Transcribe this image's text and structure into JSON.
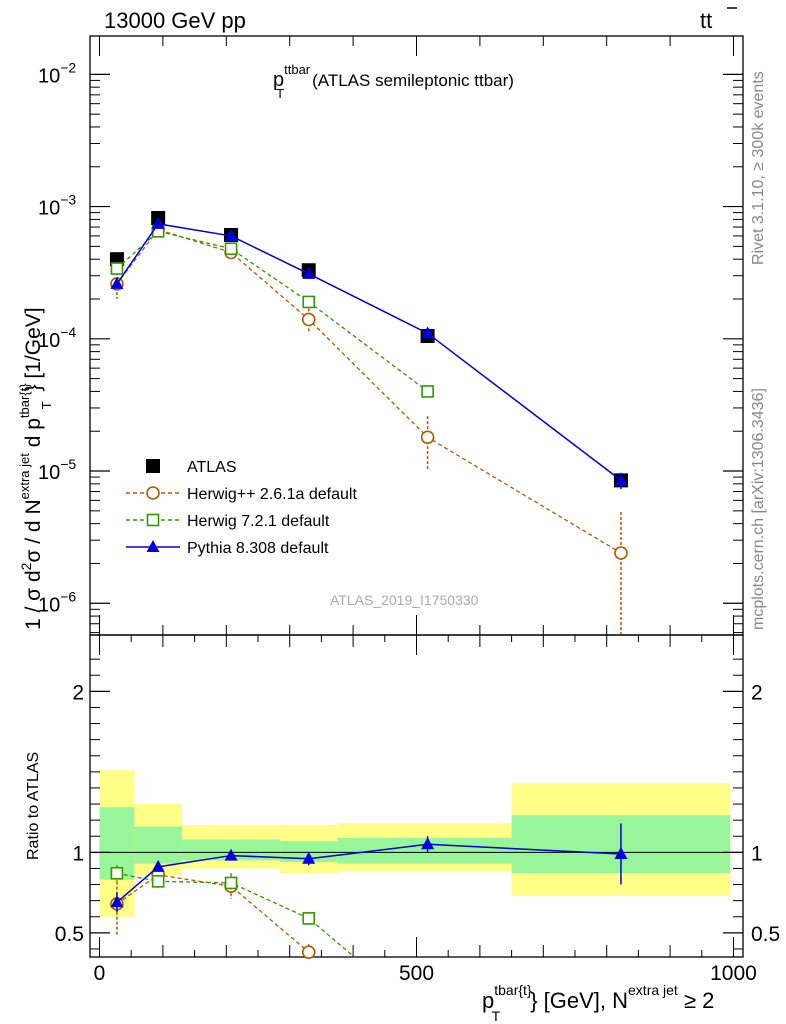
{
  "header": {
    "left": "13000 GeV pp",
    "right_main": "tt",
    "right_bar": "̄"
  },
  "side_labels": {
    "top": "Rivet 3.1.10, ≥ 300k events",
    "bottom": "mcplots.cern.ch [arXiv:1306.3436]"
  },
  "chart_data": [
    {
      "panel": "main",
      "type": "scatter",
      "scale": "log",
      "title_main": "p",
      "title_sup": "ttbar",
      "title_sub": "T",
      "title_rest": "(ATLAS semileptonic ttbar)",
      "ylabel": "1 / σ d²σ / d N^{extra jet} d p_T^{tbar{t}} [1/GeV]",
      "ylabel_parts": {
        "a": "1 / σ d",
        "a_sup": "2",
        "b": "σ / d N",
        "b_sup": "extra jet",
        "c": " d p",
        "c_sup": "tbar{t}",
        "c_sub": "T",
        "d": "} [1/GeV]"
      },
      "yticks": [
        {
          "exp": -6,
          "label_base": "10",
          "label_sup": "−6"
        },
        {
          "exp": -5,
          "label_base": "10",
          "label_sup": "−5"
        },
        {
          "exp": -4,
          "label_base": "10",
          "label_sup": "−4"
        },
        {
          "exp": -3,
          "label_base": "10",
          "label_sup": "−3"
        },
        {
          "exp": -2,
          "label_base": "10",
          "label_sup": "−2"
        }
      ],
      "ylim_log10": [
        -6.24,
        -1.71
      ],
      "watermark": "ATLAS_2019_I1750330",
      "legend": [
        {
          "name": "ATLAS",
          "marker": "square-filled",
          "color": "#000000",
          "line": "none"
        },
        {
          "name": "Herwig++ 2.6.1a default",
          "marker": "circle-open",
          "color": "#b35900",
          "line": "dashed"
        },
        {
          "name": "Herwig 7.2.1 default",
          "marker": "square-open",
          "color": "#339900",
          "line": "dashed"
        },
        {
          "name": "Pythia 8.308 default",
          "marker": "triangle-filled",
          "color": "#0000dd",
          "line": "solid"
        }
      ],
      "series": [
        {
          "name": "ATLAS",
          "x": [
            27.5,
            92.5,
            207.5,
            330,
            517.5,
            822.5
          ],
          "y": [
            0.0004,
            0.00082,
            0.00061,
            0.00033,
            0.000105,
            8.5e-06
          ],
          "xerr": [
            27.5,
            37.5,
            77.5,
            45,
            142.5,
            177.5
          ]
        },
        {
          "name": "Herwig++ 2.6.1a default",
          "x": [
            27.5,
            92.5,
            207.5,
            330,
            517.5,
            822.5
          ],
          "y": [
            0.00026,
            0.00067,
            0.00045,
            0.00014,
            1.8e-05,
            2.4e-06
          ],
          "err_hi": [
            6e-05,
            3e-05,
            2e-05,
            3e-05,
            8e-06,
            2.5e-06
          ],
          "err_lo": [
            6e-05,
            3e-05,
            2e-05,
            3e-05,
            8e-06,
            2.4e-06
          ]
        },
        {
          "name": "Herwig 7.2.1 default",
          "x": [
            27.5,
            92.5,
            207.5,
            330,
            517.5
          ],
          "y": [
            0.00034,
            0.00065,
            0.00048,
            0.00019,
            4e-05
          ],
          "err_hi": [
            2e-05,
            2e-05,
            2e-05,
            1e-05,
            2e-06
          ],
          "err_lo": [
            2e-05,
            2e-05,
            2e-05,
            1e-05,
            2e-06
          ]
        },
        {
          "name": "Pythia 8.308 default",
          "x": [
            27.5,
            92.5,
            207.5,
            330,
            517.5,
            822.5
          ],
          "y": [
            0.00026,
            0.00074,
            0.0006,
            0.00031,
            0.00011,
            8.5e-06
          ],
          "err_hi": [
            2e-05,
            1e-05,
            1e-05,
            1e-05,
            5e-06,
            1.2e-06
          ],
          "err_lo": [
            2e-05,
            1e-05,
            1e-05,
            1e-05,
            5e-06,
            1.2e-06
          ]
        }
      ]
    },
    {
      "panel": "ratio",
      "type": "scatter",
      "ylabel": "Ratio to ATLAS",
      "ylim": [
        0.35,
        2.35
      ],
      "yticks": [
        0.5,
        1,
        2
      ],
      "ytick_labels": [
        "0.5",
        "1",
        "2"
      ],
      "xlim": [
        -15,
        1015
      ],
      "xticks": [
        0,
        500,
        1000
      ],
      "xtick_labels": [
        "0",
        "500",
        "1000"
      ],
      "xlabel_parts": {
        "a": "p",
        "a_sup": "tbar{t}",
        "a_sub": "T",
        "b": "} [GeV], N",
        "b_sup": "extra jet",
        "c": " ≥ 2"
      },
      "bands": [
        {
          "x0": 0,
          "x1": 55,
          "yellow": [
            0.6,
            1.51
          ],
          "green": [
            0.83,
            1.28
          ]
        },
        {
          "x0": 55,
          "x1": 130,
          "yellow": [
            0.86,
            1.3
          ],
          "green": [
            0.93,
            1.16
          ]
        },
        {
          "x0": 130,
          "x1": 285,
          "yellow": [
            0.9,
            1.17
          ],
          "green": [
            0.95,
            1.08
          ]
        },
        {
          "x0": 285,
          "x1": 375,
          "yellow": [
            0.87,
            1.17
          ],
          "green": [
            0.94,
            1.07
          ]
        },
        {
          "x0": 375,
          "x1": 650,
          "yellow": [
            0.88,
            1.18
          ],
          "green": [
            0.93,
            1.09
          ]
        },
        {
          "x0": 650,
          "x1": 995,
          "yellow": [
            0.73,
            1.43
          ],
          "green": [
            0.87,
            1.23
          ]
        }
      ],
      "series": [
        {
          "name": "Herwig++ 2.6.1a default",
          "x": [
            27.5,
            92.5,
            207.5,
            330
          ],
          "y": [
            0.68,
            0.86,
            0.79,
            0.38
          ],
          "err": [
            0.2,
            0.07,
            0.08,
            0.05
          ],
          "extends_past_bottom": true
        },
        {
          "name": "Herwig 7.2.1 default",
          "x": [
            27.5,
            92.5,
            207.5,
            330
          ],
          "y": [
            0.87,
            0.82,
            0.81,
            0.59
          ],
          "err": [
            0.05,
            0.04,
            0.04,
            0.04
          ],
          "extends_past_bottom": true
        },
        {
          "name": "Pythia 8.308 default",
          "x": [
            27.5,
            92.5,
            207.5,
            330,
            517.5,
            822.5
          ],
          "y": [
            0.69,
            0.91,
            0.98,
            0.96,
            1.05,
            0.99
          ],
          "err": [
            0.06,
            0.03,
            0.03,
            0.04,
            0.05,
            0.19
          ]
        }
      ]
    }
  ]
}
